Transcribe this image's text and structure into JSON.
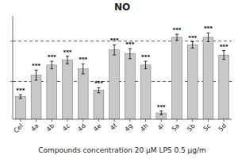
{
  "chart_data": {
    "type": "bar",
    "title": "NO",
    "xlabel": "Compounds concentration 20 μM    LPS 0.5 μg/m",
    "categories": [
      "Cel",
      "4a",
      "4b",
      "4c",
      "4d",
      "4e",
      "4f",
      "4g",
      "4h",
      "4i",
      "5a",
      "5b",
      "5c",
      "5d"
    ],
    "values": [
      18,
      35,
      43,
      47,
      40,
      23,
      55,
      52,
      43,
      5,
      65,
      59,
      65,
      51
    ],
    "errors": [
      1.5,
      4,
      3,
      3,
      4,
      2,
      4,
      4,
      3,
      1.5,
      2.5,
      2.5,
      3.5,
      3.5
    ],
    "annotations": [
      "***",
      "***",
      "***",
      "***",
      "***",
      "***",
      "***",
      "***",
      "***",
      "***",
      "***",
      "***",
      "***",
      "***"
    ],
    "reference_lines": [
      62,
      30
    ],
    "color": "#c8c8c8",
    "ylim": [
      0,
      82
    ],
    "yticks": [
      30,
      62
    ],
    "tick_labels": "x",
    "grid": false
  }
}
